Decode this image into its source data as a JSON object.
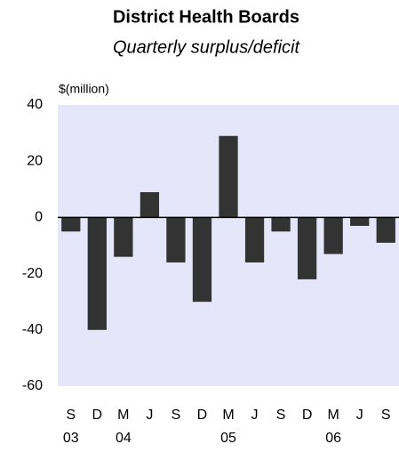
{
  "chart_data": {
    "type": "bar",
    "title": "District Health Boards",
    "subtitle": "Quarterly surplus/deficit",
    "y_label": "$(million)",
    "categories": [
      "S",
      "D",
      "M",
      "J",
      "S",
      "D",
      "M",
      "J",
      "S",
      "D",
      "M",
      "J",
      "S"
    ],
    "category_groups": [
      "03",
      null,
      "04",
      null,
      null,
      null,
      "05",
      null,
      null,
      null,
      "06",
      null,
      null
    ],
    "values": [
      -5,
      -40,
      -14,
      9,
      -16,
      -30,
      29,
      -16,
      -5,
      -22,
      -13,
      -3,
      -9
    ],
    "color": "#333333",
    "background": "#e6e6fa",
    "ylim": [
      -60,
      40
    ],
    "yticks": [
      -60,
      -40,
      -20,
      0,
      20,
      40
    ],
    "grid": false
  }
}
